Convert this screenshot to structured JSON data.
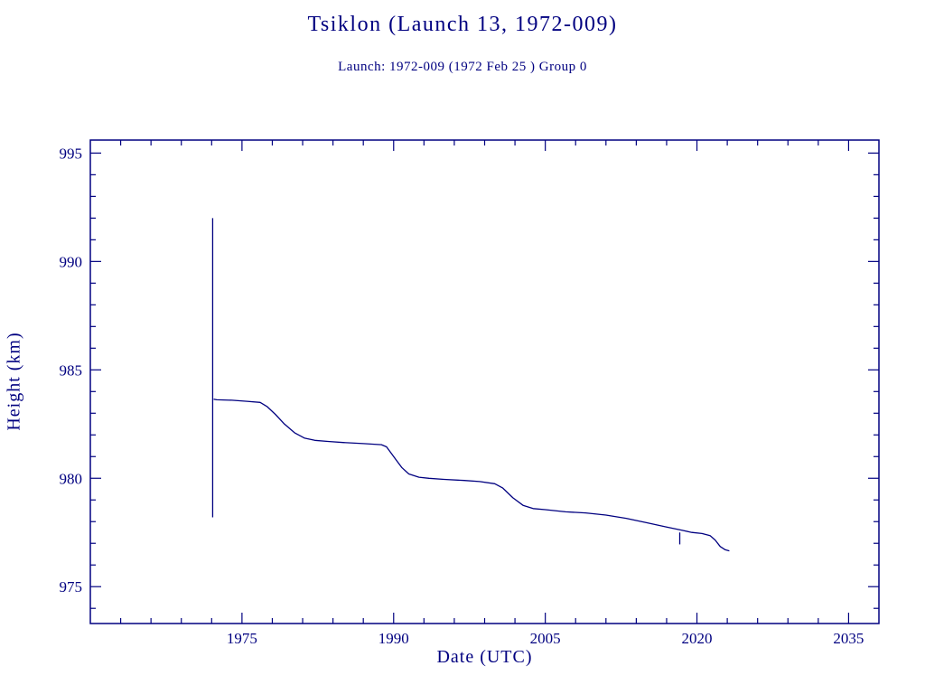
{
  "page": {
    "title": "Tsiklon (Launch 13, 1972-009)",
    "subtitle": "Launch: 1972-009  (1972 Feb 25 )  Group 0"
  },
  "colors": {
    "ink": "#000080",
    "background": "#ffffff"
  },
  "chart_data": {
    "type": "line",
    "title": "Tsiklon (Launch 13, 1972-009)",
    "subtitle": "Launch: 1972-009  (1972 Feb 25 )  Group 0",
    "xlabel": "Date (UTC)",
    "ylabel": "Height (km)",
    "xlim": [
      1960,
      2038
    ],
    "ylim": [
      973.3,
      995.6
    ],
    "xticks": [
      1975,
      1990,
      2005,
      2020,
      2035
    ],
    "yticks": [
      975,
      980,
      985,
      990,
      995
    ],
    "x_minor_step": 3,
    "y_minor_step": 1,
    "grid": false,
    "legend": false,
    "line_color": "#000080",
    "series": [
      {
        "name": "height",
        "points": [
          [
            1972.2,
            983.65
          ],
          [
            1972.5,
            983.62
          ],
          [
            1974.0,
            983.6
          ],
          [
            1975.5,
            983.55
          ],
          [
            1976.8,
            983.5
          ],
          [
            1977.5,
            983.3
          ],
          [
            1978.3,
            982.95
          ],
          [
            1979.2,
            982.5
          ],
          [
            1980.2,
            982.1
          ],
          [
            1981.2,
            981.85
          ],
          [
            1982.2,
            981.75
          ],
          [
            1983.5,
            981.7
          ],
          [
            1985.0,
            981.65
          ],
          [
            1987.0,
            981.6
          ],
          [
            1988.8,
            981.55
          ],
          [
            1989.3,
            981.45
          ],
          [
            1990.0,
            981.0
          ],
          [
            1990.8,
            980.5
          ],
          [
            1991.5,
            980.2
          ],
          [
            1992.5,
            980.05
          ],
          [
            1993.5,
            980.0
          ],
          [
            1995.0,
            979.95
          ],
          [
            1997.0,
            979.9
          ],
          [
            1998.5,
            979.85
          ],
          [
            2000.0,
            979.75
          ],
          [
            2000.8,
            979.55
          ],
          [
            2001.8,
            979.1
          ],
          [
            2002.8,
            978.75
          ],
          [
            2003.8,
            978.6
          ],
          [
            2005.0,
            978.55
          ],
          [
            2007.0,
            978.45
          ],
          [
            2009.0,
            978.4
          ],
          [
            2011.0,
            978.3
          ],
          [
            2013.0,
            978.15
          ],
          [
            2015.0,
            977.95
          ],
          [
            2017.0,
            977.75
          ],
          [
            2018.5,
            977.6
          ],
          [
            2019.5,
            977.5
          ],
          [
            2020.5,
            977.45
          ],
          [
            2021.3,
            977.35
          ],
          [
            2021.8,
            977.15
          ],
          [
            2022.3,
            976.85
          ],
          [
            2022.8,
            976.7
          ],
          [
            2023.2,
            976.65
          ]
        ]
      }
    ],
    "vertical_segments": [
      {
        "x": 1972.1,
        "y_from": 978.2,
        "y_to": 992.0
      },
      {
        "x": 2018.3,
        "y_from": 976.95,
        "y_to": 977.5
      }
    ]
  }
}
